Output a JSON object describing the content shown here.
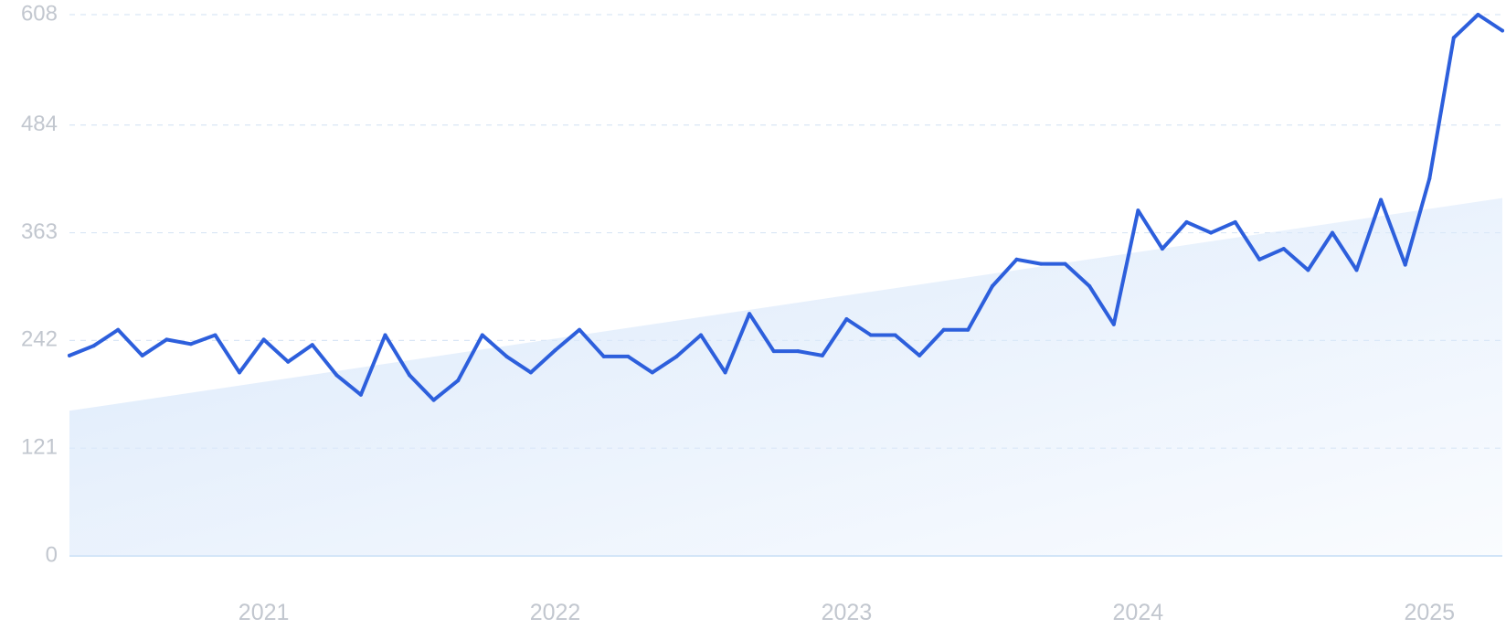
{
  "chart_data": {
    "type": "line",
    "title": "",
    "xlabel": "",
    "ylabel": "",
    "ylim": [
      0,
      608
    ],
    "yticks": [
      "0",
      "121",
      "242",
      "363",
      "484",
      "608"
    ],
    "xtick_labels": [
      {
        "label": "2021",
        "date": "2021-01"
      },
      {
        "label": "2022",
        "date": "2022-01"
      },
      {
        "label": "2023",
        "date": "2023-01"
      },
      {
        "label": "2024",
        "date": "2024-01"
      },
      {
        "label": "2025",
        "date": "2025-01"
      }
    ],
    "xlim": [
      "2020-05",
      "2025-04"
    ],
    "grid": true,
    "colors": {
      "line": "#2d5fdc",
      "trend_fill": "#dbe9fb",
      "grid": "#d9e6f5",
      "tick_text": "#c2c7cf"
    },
    "series": [
      {
        "values": [
          {
            "x": "2020-05",
            "y": 225
          },
          {
            "x": "2020-06",
            "y": 236
          },
          {
            "x": "2020-07",
            "y": 254
          },
          {
            "x": "2020-08",
            "y": 225
          },
          {
            "x": "2020-09",
            "y": 243
          },
          {
            "x": "2020-10",
            "y": 238
          },
          {
            "x": "2020-11",
            "y": 248
          },
          {
            "x": "2020-12",
            "y": 206
          },
          {
            "x": "2021-01",
            "y": 243
          },
          {
            "x": "2021-02",
            "y": 218
          },
          {
            "x": "2021-03",
            "y": 237
          },
          {
            "x": "2021-04",
            "y": 203
          },
          {
            "x": "2021-05",
            "y": 181
          },
          {
            "x": "2021-06",
            "y": 248
          },
          {
            "x": "2021-07",
            "y": 203
          },
          {
            "x": "2021-08",
            "y": 175
          },
          {
            "x": "2021-09",
            "y": 197
          },
          {
            "x": "2021-10",
            "y": 248
          },
          {
            "x": "2021-11",
            "y": 224
          },
          {
            "x": "2021-12",
            "y": 206
          },
          {
            "x": "2022-01",
            "y": 231
          },
          {
            "x": "2022-02",
            "y": 254
          },
          {
            "x": "2022-03",
            "y": 224
          },
          {
            "x": "2022-04",
            "y": 224
          },
          {
            "x": "2022-05",
            "y": 206
          },
          {
            "x": "2022-06",
            "y": 224
          },
          {
            "x": "2022-07",
            "y": 248
          },
          {
            "x": "2022-08",
            "y": 206
          },
          {
            "x": "2022-09",
            "y": 272
          },
          {
            "x": "2022-10",
            "y": 230
          },
          {
            "x": "2022-11",
            "y": 230
          },
          {
            "x": "2022-12",
            "y": 225
          },
          {
            "x": "2023-01",
            "y": 266
          },
          {
            "x": "2023-02",
            "y": 248
          },
          {
            "x": "2023-03",
            "y": 248
          },
          {
            "x": "2023-04",
            "y": 225
          },
          {
            "x": "2023-05",
            "y": 254
          },
          {
            "x": "2023-06",
            "y": 254
          },
          {
            "x": "2023-07",
            "y": 303
          },
          {
            "x": "2023-08",
            "y": 333
          },
          {
            "x": "2023-09",
            "y": 328
          },
          {
            "x": "2023-10",
            "y": 328
          },
          {
            "x": "2023-11",
            "y": 303
          },
          {
            "x": "2023-12",
            "y": 260
          },
          {
            "x": "2024-01",
            "y": 388
          },
          {
            "x": "2024-02",
            "y": 345
          },
          {
            "x": "2024-03",
            "y": 375
          },
          {
            "x": "2024-04",
            "y": 363
          },
          {
            "x": "2024-05",
            "y": 375
          },
          {
            "x": "2024-06",
            "y": 333
          },
          {
            "x": "2024-07",
            "y": 345
          },
          {
            "x": "2024-08",
            "y": 321
          },
          {
            "x": "2024-09",
            "y": 363
          },
          {
            "x": "2024-10",
            "y": 321
          },
          {
            "x": "2024-11",
            "y": 400
          },
          {
            "x": "2024-12",
            "y": 327
          },
          {
            "x": "2025-01",
            "y": 424
          },
          {
            "x": "2025-02",
            "y": 582
          },
          {
            "x": "2025-03",
            "y": 608
          },
          {
            "x": "2025-04",
            "y": 590
          }
        ]
      }
    ],
    "trend": {
      "start": {
        "x": "2020-05",
        "y": 163
      },
      "end": {
        "x": "2025-04",
        "y": 402
      }
    }
  }
}
